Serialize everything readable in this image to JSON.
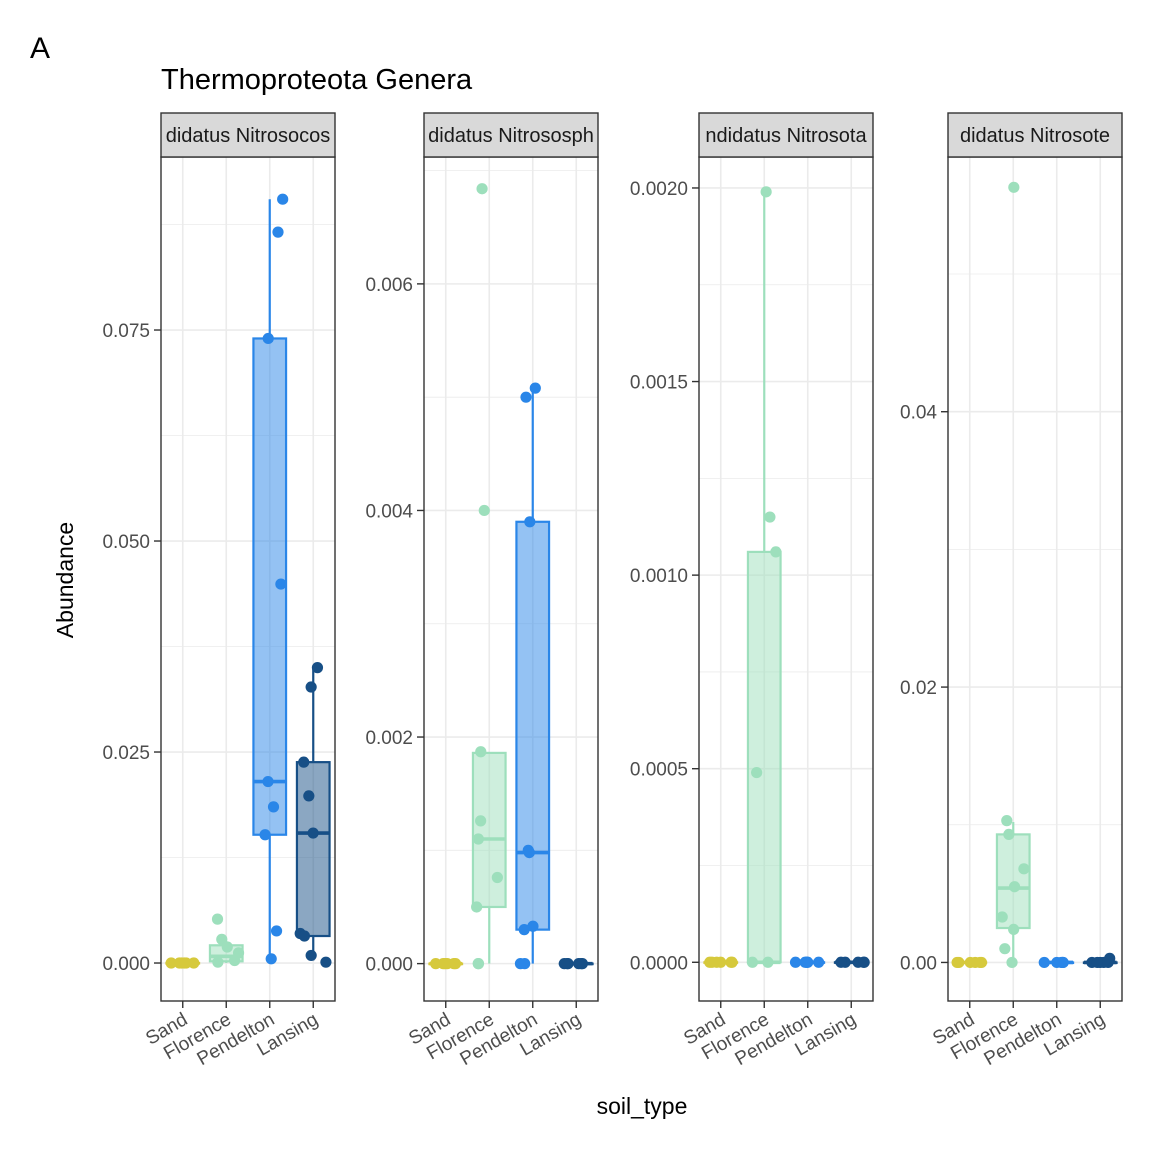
{
  "figure": {
    "panel_letter": "A",
    "title": "Thermoproteota Genera",
    "xlabel": "soil_type",
    "ylabel": "Abundance"
  },
  "colors": {
    "Sand": "#d6c93c",
    "Florence": "#9ddfbc",
    "Pendelton": "#2a86e8",
    "Lansing": "#174f86",
    "strip_fill": "#d9d9d9",
    "grid": "#ebebeb",
    "frame": "#333333"
  },
  "chart_data": [
    {
      "type": "box",
      "strip_label": "didatus Nitrosocos",
      "categories": [
        "Sand",
        "Florence",
        "Pendelton",
        "Lansing"
      ],
      "ylim": [
        -0.0045,
        0.0955
      ],
      "yticks": [
        0,
        0.025,
        0.05,
        0.075
      ],
      "ytick_labels": [
        "0.000",
        "0.025",
        "0.050",
        "0.075"
      ],
      "boxes": [
        {
          "category": "Sand",
          "q1": 0,
          "median": 0,
          "q3": 0,
          "lower": 0,
          "upper": 0
        },
        {
          "category": "Florence",
          "q1": 0.0002,
          "median": 0.0008,
          "q3": 0.0021,
          "lower": 0,
          "upper": 0.0026
        },
        {
          "category": "Pendelton",
          "q1": 0.0152,
          "median": 0.0215,
          "q3": 0.074,
          "lower": 0.0005,
          "upper": 0.0905
        },
        {
          "category": "Lansing",
          "q1": 0.0032,
          "median": 0.0154,
          "q3": 0.0238,
          "lower": 0.0003,
          "upper": 0.035
        }
      ],
      "points": [
        {
          "category": "Sand",
          "y": 0
        },
        {
          "category": "Sand",
          "y": 0
        },
        {
          "category": "Sand",
          "y": 0
        },
        {
          "category": "Sand",
          "y": 0
        },
        {
          "category": "Sand",
          "y": 0
        },
        {
          "category": "Sand",
          "y": 0
        },
        {
          "category": "Florence",
          "y": 0.0052
        },
        {
          "category": "Florence",
          "y": 0.0028
        },
        {
          "category": "Florence",
          "y": 0.0019
        },
        {
          "category": "Florence",
          "y": 0.0012
        },
        {
          "category": "Florence",
          "y": 0.0003
        },
        {
          "category": "Florence",
          "y": 0.0001
        },
        {
          "category": "Pendelton",
          "y": 0.0905
        },
        {
          "category": "Pendelton",
          "y": 0.0866
        },
        {
          "category": "Pendelton",
          "y": 0.074
        },
        {
          "category": "Pendelton",
          "y": 0.0449
        },
        {
          "category": "Pendelton",
          "y": 0.0215
        },
        {
          "category": "Pendelton",
          "y": 0.0185
        },
        {
          "category": "Pendelton",
          "y": 0.0152
        },
        {
          "category": "Pendelton",
          "y": 0.0038
        },
        {
          "category": "Pendelton",
          "y": 0.0005
        },
        {
          "category": "Lansing",
          "y": 0.035
        },
        {
          "category": "Lansing",
          "y": 0.0327
        },
        {
          "category": "Lansing",
          "y": 0.0238
        },
        {
          "category": "Lansing",
          "y": 0.0198
        },
        {
          "category": "Lansing",
          "y": 0.0154
        },
        {
          "category": "Lansing",
          "y": 0.0035
        },
        {
          "category": "Lansing",
          "y": 0.0032
        },
        {
          "category": "Lansing",
          "y": 0.0009
        },
        {
          "category": "Lansing",
          "y": 0.0001
        }
      ]
    },
    {
      "type": "box",
      "strip_label": "didatus Nitrososph",
      "categories": [
        "Sand",
        "Florence",
        "Pendelton",
        "Lansing"
      ],
      "ylim": [
        -0.00033,
        0.00712
      ],
      "yticks": [
        0,
        0.002,
        0.004,
        0.006
      ],
      "ytick_labels": [
        "0.000",
        "0.002",
        "0.004",
        "0.006"
      ],
      "boxes": [
        {
          "category": "Sand",
          "q1": 0,
          "median": 0,
          "q3": 0,
          "lower": 0,
          "upper": 0
        },
        {
          "category": "Florence",
          "q1": 0.0005,
          "median": 0.0011,
          "q3": 0.00186,
          "lower": 0,
          "upper": 0.00186
        },
        {
          "category": "Pendelton",
          "q1": 0.0003,
          "median": 0.00098,
          "q3": 0.0039,
          "lower": 0,
          "upper": 0.00508
        },
        {
          "category": "Lansing",
          "q1": 0,
          "median": 0,
          "q3": 0,
          "lower": 0,
          "upper": 0
        }
      ],
      "points": [
        {
          "category": "Sand",
          "y": 0
        },
        {
          "category": "Sand",
          "y": 0
        },
        {
          "category": "Sand",
          "y": 0
        },
        {
          "category": "Sand",
          "y": 0
        },
        {
          "category": "Sand",
          "y": 0
        },
        {
          "category": "Sand",
          "y": 0
        },
        {
          "category": "Florence",
          "y": 0.00684
        },
        {
          "category": "Florence",
          "y": 0.004
        },
        {
          "category": "Florence",
          "y": 0.00187
        },
        {
          "category": "Florence",
          "y": 0.00126
        },
        {
          "category": "Florence",
          "y": 0.0011
        },
        {
          "category": "Florence",
          "y": 0.00076
        },
        {
          "category": "Florence",
          "y": 0.0005
        },
        {
          "category": "Florence",
          "y": 0
        },
        {
          "category": "Florence",
          "y": 0
        },
        {
          "category": "Pendelton",
          "y": 0.00508
        },
        {
          "category": "Pendelton",
          "y": 0.005
        },
        {
          "category": "Pendelton",
          "y": 0.0039
        },
        {
          "category": "Pendelton",
          "y": 0.001
        },
        {
          "category": "Pendelton",
          "y": 0.00098
        },
        {
          "category": "Pendelton",
          "y": 0.00033
        },
        {
          "category": "Pendelton",
          "y": 0.0003
        },
        {
          "category": "Pendelton",
          "y": 0
        },
        {
          "category": "Pendelton",
          "y": 0
        },
        {
          "category": "Lansing",
          "y": 0
        },
        {
          "category": "Lansing",
          "y": 0
        },
        {
          "category": "Lansing",
          "y": 0
        },
        {
          "category": "Lansing",
          "y": 0
        },
        {
          "category": "Lansing",
          "y": 0
        },
        {
          "category": "Lansing",
          "y": 0
        }
      ]
    },
    {
      "type": "box",
      "strip_label": "ndidatus Nitrosota",
      "categories": [
        "Sand",
        "Florence",
        "Pendelton",
        "Lansing"
      ],
      "ylim": [
        -0.0001,
        0.00208
      ],
      "yticks": [
        0,
        0.0005,
        0.001,
        0.0015,
        0.002
      ],
      "ytick_labels": [
        "0.0000",
        "0.0005",
        "0.0010",
        "0.0015",
        "0.0020"
      ],
      "boxes": [
        {
          "category": "Sand",
          "q1": 0,
          "median": 0,
          "q3": 0,
          "lower": 0,
          "upper": 0
        },
        {
          "category": "Florence",
          "q1": 0,
          "median": 0,
          "q3": 0.00106,
          "lower": 0,
          "upper": 0.00199
        },
        {
          "category": "Pendelton",
          "q1": 0,
          "median": 0,
          "q3": 0,
          "lower": 0,
          "upper": 0
        },
        {
          "category": "Lansing",
          "q1": 0,
          "median": 0,
          "q3": 0,
          "lower": 0,
          "upper": 0
        }
      ],
      "points": [
        {
          "category": "Sand",
          "y": 0
        },
        {
          "category": "Sand",
          "y": 0
        },
        {
          "category": "Sand",
          "y": 0
        },
        {
          "category": "Sand",
          "y": 0
        },
        {
          "category": "Sand",
          "y": 0
        },
        {
          "category": "Sand",
          "y": 0
        },
        {
          "category": "Florence",
          "y": 0.00199
        },
        {
          "category": "Florence",
          "y": 0.00115
        },
        {
          "category": "Florence",
          "y": 0.00106
        },
        {
          "category": "Florence",
          "y": 0.00049
        },
        {
          "category": "Florence",
          "y": 0
        },
        {
          "category": "Florence",
          "y": 0
        },
        {
          "category": "Pendelton",
          "y": 0
        },
        {
          "category": "Pendelton",
          "y": 0
        },
        {
          "category": "Pendelton",
          "y": 0
        },
        {
          "category": "Pendelton",
          "y": 0
        },
        {
          "category": "Pendelton",
          "y": 0
        },
        {
          "category": "Pendelton",
          "y": 0
        },
        {
          "category": "Lansing",
          "y": 0
        },
        {
          "category": "Lansing",
          "y": 0
        },
        {
          "category": "Lansing",
          "y": 0
        },
        {
          "category": "Lansing",
          "y": 0
        },
        {
          "category": "Lansing",
          "y": 0
        }
      ]
    },
    {
      "type": "box",
      "strip_label": "didatus Nitrosote",
      "categories": [
        "Sand",
        "Florence",
        "Pendelton",
        "Lansing"
      ],
      "ylim": [
        -0.0028,
        0.0585
      ],
      "yticks": [
        0,
        0.02,
        0.04
      ],
      "ytick_labels": [
        "0.00",
        "0.02",
        "0.04"
      ],
      "boxes": [
        {
          "category": "Sand",
          "q1": 0,
          "median": 0,
          "q3": 0,
          "lower": 0,
          "upper": 0
        },
        {
          "category": "Florence",
          "q1": 0.0025,
          "median": 0.0054,
          "q3": 0.0093,
          "lower": 0,
          "upper": 0.0102
        },
        {
          "category": "Pendelton",
          "q1": 0,
          "median": 0,
          "q3": 0,
          "lower": 0,
          "upper": 0
        },
        {
          "category": "Lansing",
          "q1": 0,
          "median": 0,
          "q3": 0,
          "lower": 0,
          "upper": 0
        }
      ],
      "points": [
        {
          "category": "Sand",
          "y": 0
        },
        {
          "category": "Sand",
          "y": 0
        },
        {
          "category": "Sand",
          "y": 0
        },
        {
          "category": "Sand",
          "y": 0
        },
        {
          "category": "Sand",
          "y": 0
        },
        {
          "category": "Sand",
          "y": 0
        },
        {
          "category": "Florence",
          "y": 0.0563
        },
        {
          "category": "Florence",
          "y": 0.0103
        },
        {
          "category": "Florence",
          "y": 0.0093
        },
        {
          "category": "Florence",
          "y": 0.0068
        },
        {
          "category": "Florence",
          "y": 0.0055
        },
        {
          "category": "Florence",
          "y": 0.0033
        },
        {
          "category": "Florence",
          "y": 0.0024
        },
        {
          "category": "Florence",
          "y": 0.001
        },
        {
          "category": "Florence",
          "y": 0
        },
        {
          "category": "Pendelton",
          "y": 0
        },
        {
          "category": "Pendelton",
          "y": 0
        },
        {
          "category": "Pendelton",
          "y": 0
        },
        {
          "category": "Pendelton",
          "y": 0
        },
        {
          "category": "Pendelton",
          "y": 0
        },
        {
          "category": "Pendelton",
          "y": 0
        },
        {
          "category": "Lansing",
          "y": 0.0003
        },
        {
          "category": "Lansing",
          "y": 0
        },
        {
          "category": "Lansing",
          "y": 0
        },
        {
          "category": "Lansing",
          "y": 0
        },
        {
          "category": "Lansing",
          "y": 0
        },
        {
          "category": "Lansing",
          "y": 0
        }
      ]
    }
  ]
}
